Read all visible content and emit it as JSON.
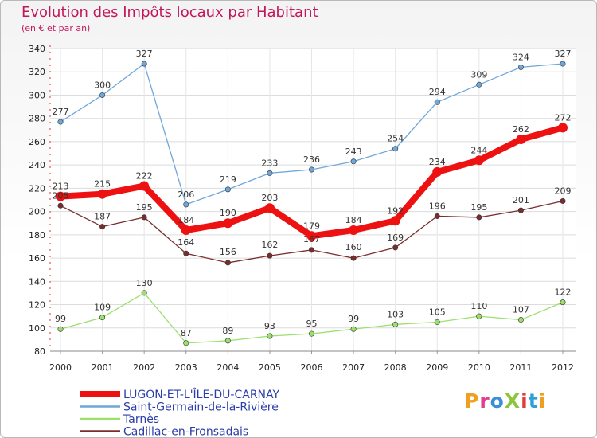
{
  "header": {
    "title": "Evolution des Impôts locaux par Habitant",
    "subtitle": "(en € et par an)"
  },
  "logo": {
    "text": "ProXiti"
  },
  "chart_data": {
    "type": "line",
    "title": "Evolution des Impôts locaux par Habitant",
    "subtitle": "(en € et par an)",
    "xlabel": "",
    "ylabel": "",
    "x": [
      "2000",
      "2001",
      "2002",
      "2003",
      "2004",
      "2005",
      "2006",
      "2007",
      "2008",
      "2009",
      "2010",
      "2011",
      "2012"
    ],
    "ylim": [
      80,
      340
    ],
    "yticks": [
      80,
      100,
      120,
      140,
      160,
      180,
      200,
      220,
      240,
      260,
      280,
      300,
      320,
      340
    ],
    "grid": true,
    "legend_position": "bottom-left",
    "series": [
      {
        "name": "LUGON-ET-L'ÎLE-DU-CARNAY",
        "color": "#ee1111",
        "values": [
          213,
          215,
          222,
          184,
          190,
          203,
          179,
          184,
          192,
          234,
          244,
          262,
          272
        ]
      },
      {
        "name": "Saint-Germain-de-la-Rivière",
        "color": "#6fa7d8",
        "values": [
          277,
          300,
          327,
          206,
          219,
          233,
          236,
          243,
          254,
          294,
          309,
          324,
          327
        ]
      },
      {
        "name": "Tarnès",
        "color": "#9be06c",
        "values": [
          99,
          109,
          130,
          87,
          89,
          93,
          95,
          99,
          103,
          105,
          110,
          107,
          122
        ]
      },
      {
        "name": "Cadillac-en-Fronsadais",
        "color": "#7a2d2d",
        "values": [
          205,
          187,
          195,
          164,
          156,
          162,
          167,
          160,
          169,
          196,
          195,
          201,
          209
        ]
      }
    ]
  }
}
